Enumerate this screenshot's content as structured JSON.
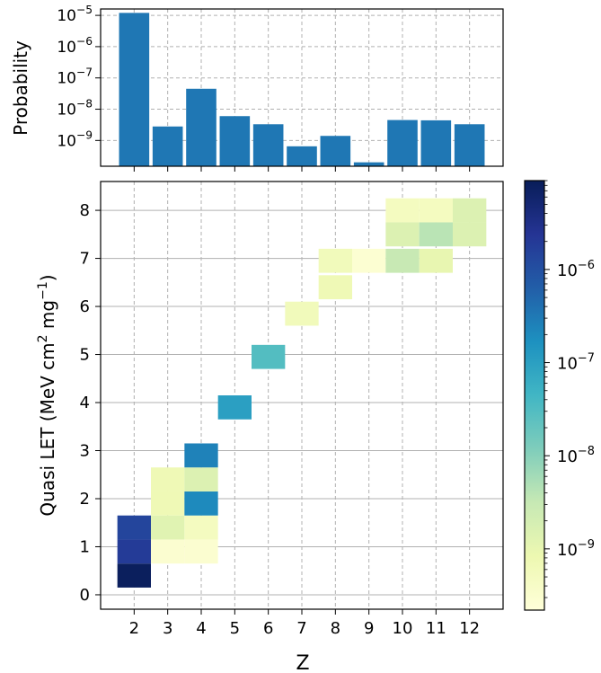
{
  "chart_data": [
    {
      "type": "bar",
      "ylabel": "Probability",
      "yscale": "log",
      "ylim": [
        1.5e-10,
        1.6e-05
      ],
      "categories": [
        "2",
        "3",
        "4",
        "5",
        "6",
        "7",
        "8",
        "9",
        "10",
        "11",
        "12"
      ],
      "values": [
        1.2e-05,
        2.8e-09,
        4.5e-08,
        6e-09,
        3.3e-09,
        6.5e-10,
        1.4e-09,
        2e-10,
        4.5e-09,
        4.4e-09,
        3.3e-09
      ],
      "color": "#1f77b4",
      "grid": true,
      "y_ticks": [
        {
          "value": 1e-09,
          "base": "10",
          "exp": "−9"
        },
        {
          "value": 1e-08,
          "base": "10",
          "exp": "−8"
        },
        {
          "value": 1e-07,
          "base": "10",
          "exp": "−7"
        },
        {
          "value": 1e-06,
          "base": "10",
          "exp": "−6"
        },
        {
          "value": 1e-05,
          "base": "10",
          "exp": "−5"
        }
      ]
    },
    {
      "type": "heatmap",
      "xlabel": "Z",
      "ylabel_parts": [
        "Quasi LET (MeV cm",
        "2",
        " mg",
        "−1",
        ")"
      ],
      "x_ticks": [
        "2",
        "3",
        "4",
        "5",
        "6",
        "7",
        "8",
        "9",
        "10",
        "11",
        "12"
      ],
      "y_ticks": [
        "0",
        "1",
        "2",
        "3",
        "4",
        "5",
        "6",
        "7",
        "8"
      ],
      "xlim": [
        1,
        13
      ],
      "ylim": [
        -0.3,
        8.6
      ],
      "bin_height": 0.5,
      "colormap": "YlGnBu",
      "grid": true,
      "cells": [
        {
          "z": 2,
          "let": 0.4,
          "value": 8e-06
        },
        {
          "z": 2,
          "let": 0.9,
          "value": 1.9e-06
        },
        {
          "z": 2,
          "let": 1.4,
          "value": 1.4e-06
        },
        {
          "z": 3,
          "let": 0.9,
          "value": 3e-10
        },
        {
          "z": 3,
          "let": 1.4,
          "value": 1.3e-09
        },
        {
          "z": 3,
          "let": 1.9,
          "value": 7e-10
        },
        {
          "z": 3,
          "let": 2.4,
          "value": 7e-10
        },
        {
          "z": 4,
          "let": 0.9,
          "value": 3e-10
        },
        {
          "z": 4,
          "let": 1.4,
          "value": 5e-10
        },
        {
          "z": 4,
          "let": 1.9,
          "value": 2e-07
        },
        {
          "z": 4,
          "let": 2.4,
          "value": 1.5e-09
        },
        {
          "z": 4,
          "let": 2.9,
          "value": 2.5e-07
        },
        {
          "z": 5,
          "let": 3.9,
          "value": 1e-07
        },
        {
          "z": 6,
          "let": 4.95,
          "value": 3e-08
        },
        {
          "z": 7,
          "let": 5.85,
          "value": 6e-10
        },
        {
          "z": 8,
          "let": 6.4,
          "value": 7e-10
        },
        {
          "z": 8,
          "let": 6.95,
          "value": 6e-10
        },
        {
          "z": 9,
          "let": 6.95,
          "value": 2.8e-10
        },
        {
          "z": 10,
          "let": 6.95,
          "value": 3e-09
        },
        {
          "z": 10,
          "let": 7.5,
          "value": 1.5e-09
        },
        {
          "z": 10,
          "let": 8.0,
          "value": 5e-10
        },
        {
          "z": 11,
          "let": 6.95,
          "value": 1e-09
        },
        {
          "z": 11,
          "let": 7.5,
          "value": 4e-09
        },
        {
          "z": 11,
          "let": 8.0,
          "value": 5e-10
        },
        {
          "z": 12,
          "let": 7.5,
          "value": 1.5e-09
        },
        {
          "z": 12,
          "let": 8.0,
          "value": 1.5e-09
        }
      ]
    }
  ],
  "colorbar": {
    "colormap": "YlGnBu",
    "vmin": 2.2e-10,
    "vmax": 9e-06,
    "ticks": [
      {
        "value": 1e-09,
        "base": "10",
        "exp": "−9"
      },
      {
        "value": 1e-08,
        "base": "10",
        "exp": "−8"
      },
      {
        "value": 1e-07,
        "base": "10",
        "exp": "−7"
      },
      {
        "value": 1e-06,
        "base": "10",
        "exp": "−6"
      }
    ]
  }
}
